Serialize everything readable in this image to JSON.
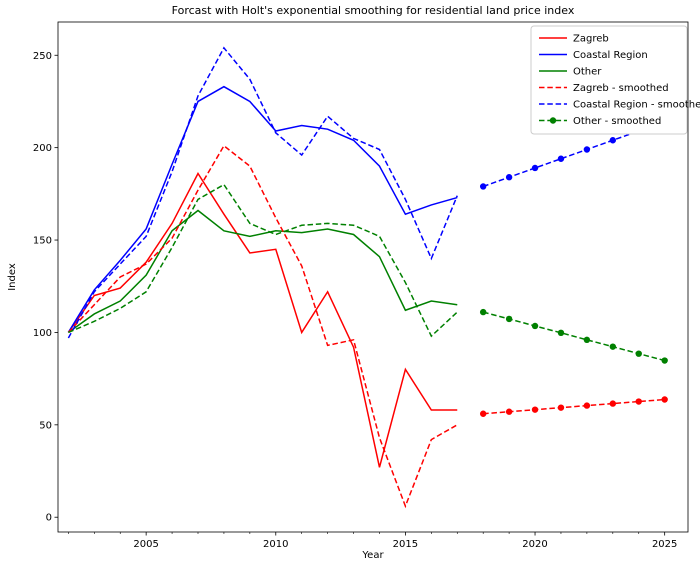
{
  "title": "Forcast with Holt's exponential smoothing for residential land price index",
  "chart_data": {
    "type": "line",
    "title": "Forcast with Holt's exponential smoothing for residential land price index",
    "xlabel": "Year",
    "ylabel": "Index",
    "xlim": [
      2001.6,
      2025.9
    ],
    "ylim": [
      -8,
      268
    ],
    "grid": false,
    "legend_position": "upper right",
    "x_major_ticks": [
      2005,
      2010,
      2015,
      2020,
      2025
    ],
    "x_minor_tick_interval": 1,
    "y_ticks": [
      0,
      50,
      100,
      150,
      200,
      250
    ],
    "years_history": [
      2002,
      2003,
      2004,
      2005,
      2006,
      2007,
      2008,
      2009,
      2010,
      2011,
      2012,
      2013,
      2014,
      2015,
      2016,
      2017
    ],
    "years_forecast": [
      2018,
      2019,
      2020,
      2021,
      2022,
      2023,
      2024,
      2025
    ],
    "series": [
      {
        "name": "Zagreb",
        "color": "#ff0000",
        "style": "solid",
        "history_values": [
          100,
          120,
          124,
          138,
          159,
          186,
          164,
          143,
          145,
          100,
          122,
          92,
          27,
          80,
          58,
          58
        ]
      },
      {
        "name": "Coastal Region",
        "color": "#0000ff",
        "style": "solid",
        "history_values": [
          100,
          123,
          139,
          156,
          191,
          225,
          233,
          225,
          209,
          212,
          210,
          204,
          190,
          164,
          169,
          173
        ]
      },
      {
        "name": "Other",
        "color": "#008000",
        "style": "solid",
        "history_values": [
          100,
          110,
          117,
          131,
          155,
          166,
          155,
          152,
          155,
          154,
          156,
          153,
          141,
          112,
          117,
          115
        ]
      },
      {
        "name": "Zagreb - smoothed",
        "color": "#ff0000",
        "style": "dashed",
        "forecast_marker": true,
        "history_values": [
          100,
          115,
          130,
          137,
          151,
          177,
          201,
          190,
          162,
          136,
          93,
          96,
          43,
          6,
          42,
          50
        ],
        "forecast_values": [
          56,
          57.1,
          58.2,
          59.3,
          60.4,
          61.5,
          62.6,
          63.7
        ]
      },
      {
        "name": "Coastal Region - smoothed",
        "color": "#0000ff",
        "style": "dashed",
        "forecast_marker": true,
        "history_values": [
          97,
          122,
          137,
          152,
          187,
          228,
          254,
          237,
          208,
          196,
          217,
          205,
          199,
          172,
          140,
          174
        ],
        "forecast_values": [
          179,
          184,
          189,
          194,
          199,
          204,
          209,
          214
        ]
      },
      {
        "name": "Other - smoothed",
        "color": "#008000",
        "style": "dashed",
        "forecast_marker": true,
        "legend_marker": true,
        "history_values": [
          100,
          106,
          113,
          122,
          146,
          172,
          180,
          159,
          153,
          158,
          159,
          158,
          152,
          127,
          98,
          111
        ],
        "forecast_values": [
          111,
          107.3,
          103.5,
          99.8,
          96,
          92.3,
          88.5,
          84.8
        ]
      }
    ]
  }
}
